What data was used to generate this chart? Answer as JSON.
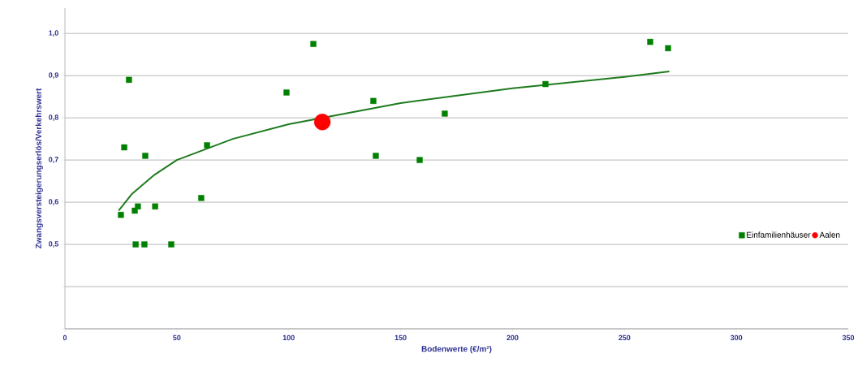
{
  "chart_data": {
    "type": "scatter",
    "xlabel": "Bodenwerte (€/m²)",
    "ylabel": "Zwangsversteigerungserlös/Verkehrswert",
    "xlim": [
      0,
      350
    ],
    "xticks": [
      0,
      50,
      100,
      150,
      200,
      250,
      300,
      350
    ],
    "ylim": [
      0.3,
      1.06
    ],
    "yticks": [
      {
        "value": 0.3,
        "label": null
      },
      {
        "value": 0.4,
        "label": null
      },
      {
        "value": 0.5,
        "label": "0,5"
      },
      {
        "value": 0.6,
        "label": "0,6"
      },
      {
        "value": 0.7,
        "label": "0,7"
      },
      {
        "value": 0.8,
        "label": "0,8"
      },
      {
        "value": 0.9,
        "label": "0,9"
      },
      {
        "value": 1.0,
        "label": "1,0"
      }
    ],
    "grid": "y",
    "legend": "bottom right",
    "series": [
      {
        "type": "line",
        "color": "#1e7b1e",
        "marker": "none",
        "x": [
          24,
          30,
          40,
          50,
          75,
          100,
          125,
          150,
          200,
          250,
          270
        ],
        "values": [
          0.58,
          0.62,
          0.665,
          0.7,
          0.75,
          0.785,
          0.81,
          0.835,
          0.87,
          0.897,
          0.91
        ]
      },
      {
        "name": "Einfamilienhäuser",
        "color": "#008000",
        "marker": "square",
        "x": [
          25,
          26.5,
          28.6,
          31.2,
          32.6,
          31.6,
          35.5,
          35.9,
          40.3,
          47.5,
          60.9,
          63.5,
          99,
          111,
          137.8,
          138.9,
          158.5,
          169.7,
          214.7,
          261.5,
          269.5
        ],
        "values": [
          0.57,
          0.73,
          0.89,
          0.58,
          0.59,
          0.5,
          0.5,
          0.71,
          0.59,
          0.5,
          0.61,
          0.735,
          0.86,
          0.975,
          0.84,
          0.71,
          0.7,
          0.81,
          0.88,
          0.98,
          0.965
        ]
      },
      {
        "name": "Aalen",
        "color": "#ff0000",
        "marker": "circle",
        "x": [
          115
        ],
        "values": [
          0.79
        ]
      }
    ]
  }
}
